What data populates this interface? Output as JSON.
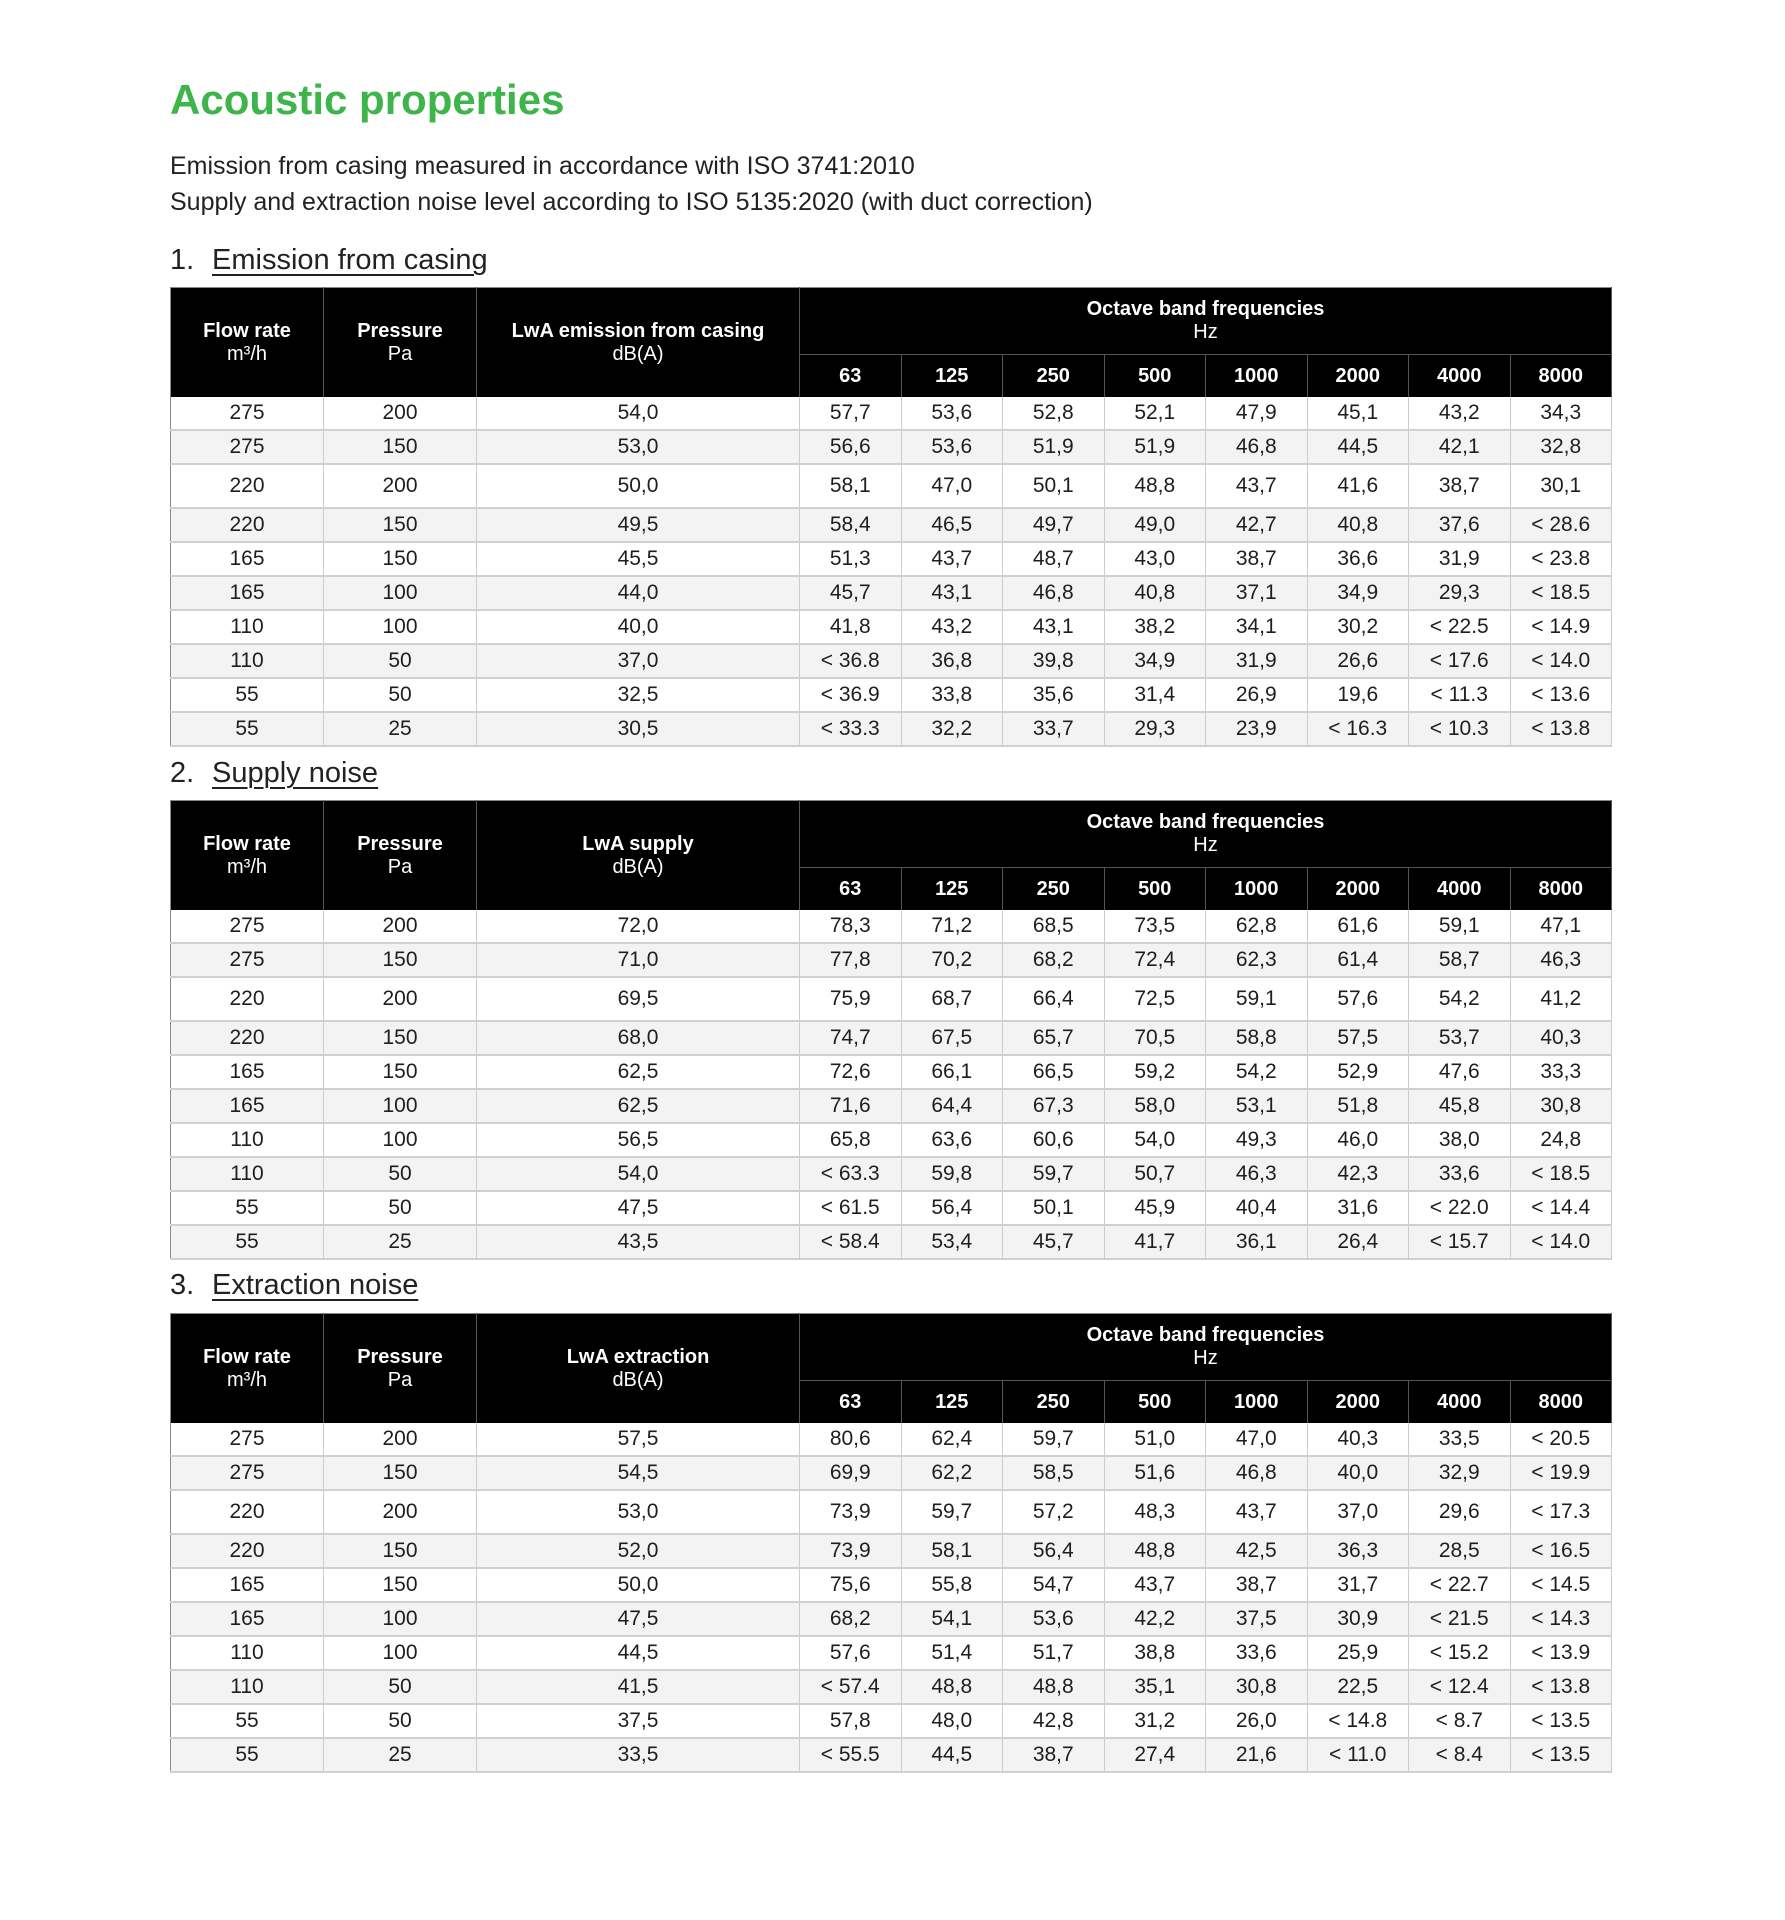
{
  "title": "Acoustic properties",
  "intro": [
    "Emission from casing measured in accordance with ISO 3741:2010",
    "Supply and extraction noise level according to ISO 5135:2020 (with duct correction)"
  ],
  "colors": {
    "title": "#3db54a",
    "header_bg": "#000000"
  },
  "header": {
    "flow_rate": "Flow rate",
    "flow_unit": "m³/h",
    "pressure": "Pressure",
    "pressure_unit": "Pa",
    "level_unit": "dB(A)",
    "octave": "Octave band frequencies",
    "octave_unit": "Hz",
    "frequencies": [
      "63",
      "125",
      "250",
      "500",
      "1000",
      "2000",
      "4000",
      "8000"
    ]
  },
  "sections": [
    {
      "number": "1.",
      "title": "Emission from casing",
      "level_label": "LwA emission from casing",
      "rows": [
        [
          "275",
          "200",
          "54,0",
          "57,7",
          "53,6",
          "52,8",
          "52,1",
          "47,9",
          "45,1",
          "43,2",
          "34,3"
        ],
        [
          "275",
          "150",
          "53,0",
          "56,6",
          "53,6",
          "51,9",
          "51,9",
          "46,8",
          "44,5",
          "42,1",
          "32,8"
        ],
        [
          "220",
          "200",
          "50,0",
          "58,1",
          "47,0",
          "50,1",
          "48,8",
          "43,7",
          "41,6",
          "38,7",
          "30,1"
        ],
        [
          "220",
          "150",
          "49,5",
          "58,4",
          "46,5",
          "49,7",
          "49,0",
          "42,7",
          "40,8",
          "37,6",
          "< 28.6"
        ],
        [
          "165",
          "150",
          "45,5",
          "51,3",
          "43,7",
          "48,7",
          "43,0",
          "38,7",
          "36,6",
          "31,9",
          "< 23.8"
        ],
        [
          "165",
          "100",
          "44,0",
          "45,7",
          "43,1",
          "46,8",
          "40,8",
          "37,1",
          "34,9",
          "29,3",
          "< 18.5"
        ],
        [
          "110",
          "100",
          "40,0",
          "41,8",
          "43,2",
          "43,1",
          "38,2",
          "34,1",
          "30,2",
          "< 22.5",
          "< 14.9"
        ],
        [
          "110",
          "50",
          "37,0",
          "< 36.8",
          "36,8",
          "39,8",
          "34,9",
          "31,9",
          "26,6",
          "< 17.6",
          "< 14.0"
        ],
        [
          "55",
          "50",
          "32,5",
          "< 36.9",
          "33,8",
          "35,6",
          "31,4",
          "26,9",
          "19,6",
          "< 11.3",
          "< 13.6"
        ],
        [
          "55",
          "25",
          "30,5",
          "< 33.3",
          "32,2",
          "33,7",
          "29,3",
          "23,9",
          "< 16.3",
          "< 10.3",
          "< 13.8"
        ]
      ]
    },
    {
      "number": "2.",
      "title": "Supply noise",
      "level_label": "LwA supply",
      "rows": [
        [
          "275",
          "200",
          "72,0",
          "78,3",
          "71,2",
          "68,5",
          "73,5",
          "62,8",
          "61,6",
          "59,1",
          "47,1"
        ],
        [
          "275",
          "150",
          "71,0",
          "77,8",
          "70,2",
          "68,2",
          "72,4",
          "62,3",
          "61,4",
          "58,7",
          "46,3"
        ],
        [
          "220",
          "200",
          "69,5",
          "75,9",
          "68,7",
          "66,4",
          "72,5",
          "59,1",
          "57,6",
          "54,2",
          "41,2"
        ],
        [
          "220",
          "150",
          "68,0",
          "74,7",
          "67,5",
          "65,7",
          "70,5",
          "58,8",
          "57,5",
          "53,7",
          "40,3"
        ],
        [
          "165",
          "150",
          "62,5",
          "72,6",
          "66,1",
          "66,5",
          "59,2",
          "54,2",
          "52,9",
          "47,6",
          "33,3"
        ],
        [
          "165",
          "100",
          "62,5",
          "71,6",
          "64,4",
          "67,3",
          "58,0",
          "53,1",
          "51,8",
          "45,8",
          "30,8"
        ],
        [
          "110",
          "100",
          "56,5",
          "65,8",
          "63,6",
          "60,6",
          "54,0",
          "49,3",
          "46,0",
          "38,0",
          "24,8"
        ],
        [
          "110",
          "50",
          "54,0",
          "< 63.3",
          "59,8",
          "59,7",
          "50,7",
          "46,3",
          "42,3",
          "33,6",
          "< 18.5"
        ],
        [
          "55",
          "50",
          "47,5",
          "< 61.5",
          "56,4",
          "50,1",
          "45,9",
          "40,4",
          "31,6",
          "< 22.0",
          "< 14.4"
        ],
        [
          "55",
          "25",
          "43,5",
          "< 58.4",
          "53,4",
          "45,7",
          "41,7",
          "36,1",
          "26,4",
          "< 15.7",
          "< 14.0"
        ]
      ]
    },
    {
      "number": "3.",
      "title": "Extraction noise",
      "level_label": "LwA extraction",
      "rows": [
        [
          "275",
          "200",
          "57,5",
          "80,6",
          "62,4",
          "59,7",
          "51,0",
          "47,0",
          "40,3",
          "33,5",
          "< 20.5"
        ],
        [
          "275",
          "150",
          "54,5",
          "69,9",
          "62,2",
          "58,5",
          "51,6",
          "46,8",
          "40,0",
          "32,9",
          "< 19.9"
        ],
        [
          "220",
          "200",
          "53,0",
          "73,9",
          "59,7",
          "57,2",
          "48,3",
          "43,7",
          "37,0",
          "29,6",
          "< 17.3"
        ],
        [
          "220",
          "150",
          "52,0",
          "73,9",
          "58,1",
          "56,4",
          "48,8",
          "42,5",
          "36,3",
          "28,5",
          "< 16.5"
        ],
        [
          "165",
          "150",
          "50,0",
          "75,6",
          "55,8",
          "54,7",
          "43,7",
          "38,7",
          "31,7",
          "< 22.7",
          "< 14.5"
        ],
        [
          "165",
          "100",
          "47,5",
          "68,2",
          "54,1",
          "53,6",
          "42,2",
          "37,5",
          "30,9",
          "< 21.5",
          "< 14.3"
        ],
        [
          "110",
          "100",
          "44,5",
          "57,6",
          "51,4",
          "51,7",
          "38,8",
          "33,6",
          "25,9",
          "< 15.2",
          "< 13.9"
        ],
        [
          "110",
          "50",
          "41,5",
          "< 57.4",
          "48,8",
          "48,8",
          "35,1",
          "30,8",
          "22,5",
          "< 12.4",
          "< 13.8"
        ],
        [
          "55",
          "50",
          "37,5",
          "57,8",
          "48,0",
          "42,8",
          "31,2",
          "26,0",
          "< 14.8",
          "< 8.7",
          "< 13.5"
        ],
        [
          "55",
          "25",
          "33,5",
          "< 55.5",
          "44,5",
          "38,7",
          "27,4",
          "21,6",
          "< 11.0",
          "< 8.4",
          "< 13.5"
        ]
      ]
    }
  ]
}
